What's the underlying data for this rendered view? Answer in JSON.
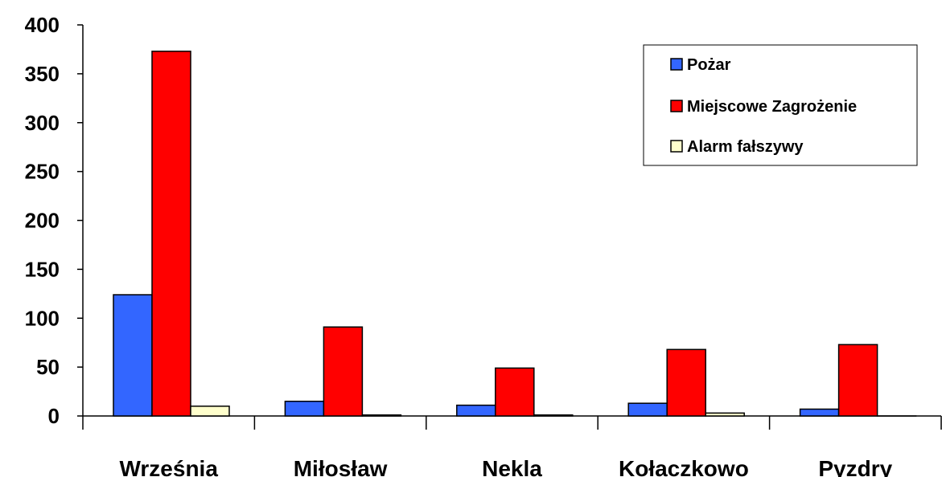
{
  "chart_data": {
    "type": "bar",
    "title": "",
    "xlabel": "",
    "ylabel": "",
    "categories": [
      "Września",
      "Miłosław",
      "Nekla",
      "Kołaczkowo",
      "Pyzdry"
    ],
    "series": [
      {
        "name": "Pożar",
        "color": "#3366FF",
        "values": [
          124,
          15,
          11,
          13,
          7
        ]
      },
      {
        "name": "Miejscowe Zagrożenie",
        "color": "#FF0000",
        "values": [
          373,
          91,
          49,
          68,
          73
        ]
      },
      {
        "name": "Alarm fałszywy",
        "color": "#FFFFCC",
        "values": [
          10,
          1,
          1,
          3,
          0
        ]
      }
    ],
    "ylim": [
      0,
      400
    ],
    "yticks": [
      0,
      50,
      100,
      150,
      200,
      250,
      300,
      350,
      400
    ],
    "grid": false,
    "legend_position": "top-right"
  }
}
